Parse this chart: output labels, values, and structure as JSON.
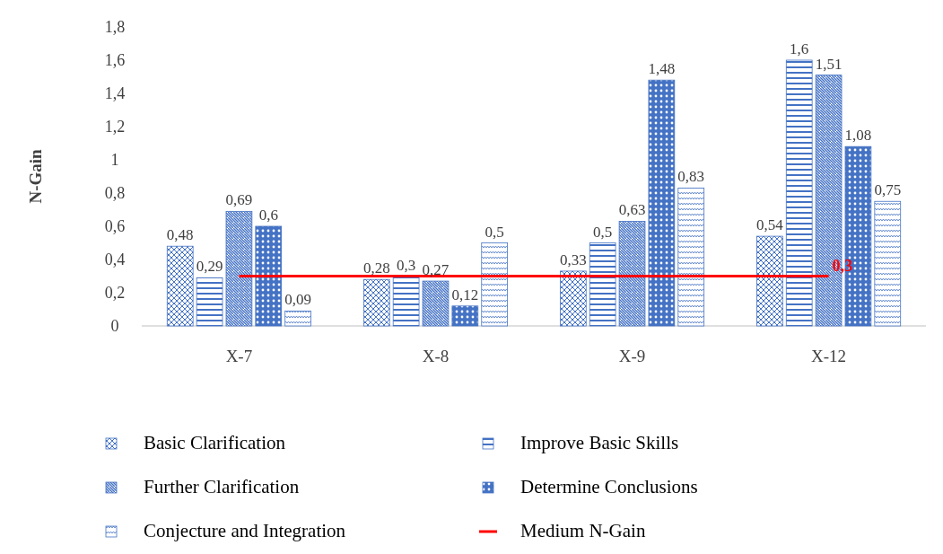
{
  "chart_data": {
    "type": "bar",
    "ylabel": "N-Gain",
    "categories": [
      "X-7",
      "X-8",
      "X-9",
      "X-12"
    ],
    "ylim": [
      0,
      1.8
    ],
    "yticks": [
      0,
      {
        "value": 0.2,
        "label": "0,2"
      },
      {
        "value": 0.4,
        "label": "0,4"
      },
      {
        "value": 0.6,
        "label": "0,6"
      },
      {
        "value": 0.8,
        "label": "0,8"
      },
      1,
      {
        "value": 1.2,
        "label": "1,2"
      },
      {
        "value": 1.4,
        "label": "1,4"
      },
      {
        "value": 1.6,
        "label": "1,6"
      },
      {
        "value": 1.8,
        "label": "1,8"
      }
    ],
    "grid": false,
    "legend": "bottom",
    "series": [
      {
        "name": "Basic Clarification",
        "color": "#4472c4",
        "values": [
          0.48,
          0.28,
          0.33,
          0.54
        ],
        "value_labels": [
          "0,48",
          "0,28",
          "0,33",
          "0,54"
        ]
      },
      {
        "name": "Improve Basic Skills",
        "color": "#4472c4",
        "values": [
          0.29,
          0.3,
          0.5,
          1.6
        ],
        "value_labels": [
          "0,29",
          "0,3",
          "0,5",
          "1,6"
        ]
      },
      {
        "name": "Further Clarification",
        "color": "#4472c4",
        "values": [
          0.69,
          0.27,
          0.63,
          1.51
        ],
        "value_labels": [
          "0,69",
          "0,27",
          "0,63",
          "1,51"
        ]
      },
      {
        "name": "Determine Conclusions",
        "color": "#4472c4",
        "values": [
          0.6,
          0.12,
          1.48,
          1.08
        ],
        "value_labels": [
          "0,6",
          "0,12",
          "1,48",
          "1,08"
        ]
      },
      {
        "name": "Conjecture and Integration",
        "color": "#4472c4",
        "values": [
          0.09,
          0.5,
          0.83,
          0.75
        ],
        "value_labels": [
          "0,09",
          "0,5",
          "0,83",
          "0,75"
        ]
      },
      {
        "name": "Medium N-Gain",
        "type": "line",
        "color": "#ff0000",
        "values": [
          0.3,
          0.3,
          0.3,
          0.3
        ],
        "value_labels": [
          null,
          null,
          null,
          "0,3"
        ]
      }
    ]
  }
}
